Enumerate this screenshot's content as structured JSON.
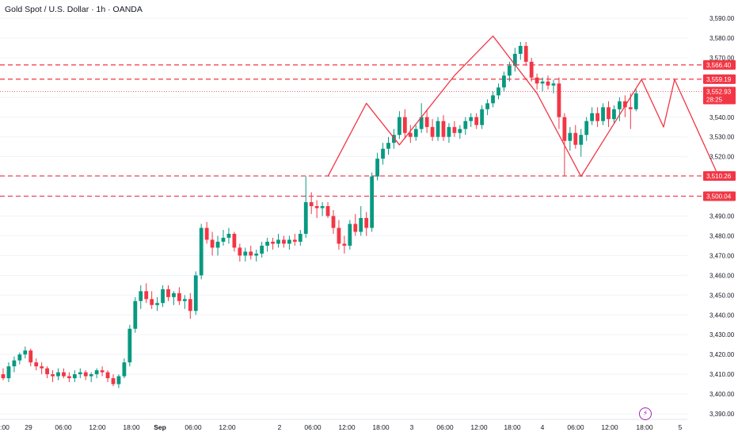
{
  "header": {
    "title": "Gold Spot / U.S. Dollar · 1h · OANDA"
  },
  "price_axis": {
    "ticks": [
      "3,590.00",
      "3,580.00",
      "3,570.00",
      "3,560.00",
      "3,550.00",
      "3,540.00",
      "3,530.00",
      "3,520.00",
      "3,510.00",
      "3,500.00",
      "3,490.00",
      "3,480.00",
      "3,470.00",
      "3,460.00",
      "3,450.00",
      "3,440.00",
      "3,430.00",
      "3,420.00",
      "3,410.00",
      "3,400.00",
      "3,390.00"
    ],
    "tick_values": [
      3590,
      3580,
      3570,
      3560,
      3550,
      3540,
      3530,
      3520,
      3510,
      3500,
      3490,
      3480,
      3470,
      3460,
      3450,
      3440,
      3430,
      3420,
      3410,
      3400,
      3390
    ]
  },
  "time_axis": {
    "labels": [
      ":00",
      "29",
      "06:00",
      "12:00",
      "18:00",
      "Sep",
      "06:00",
      "12:00",
      "2",
      "06:00",
      "12:00",
      "18:00",
      "3",
      "06:00",
      "12:00",
      "18:00",
      "4",
      "06:00",
      "12:00",
      "18:00",
      "5"
    ],
    "bold": [
      false,
      false,
      false,
      false,
      false,
      true,
      false,
      false,
      false,
      false,
      false,
      false,
      false,
      false,
      false,
      false,
      false,
      false,
      false,
      false,
      false
    ]
  },
  "horizontal_levels": [
    {
      "price": 3566.4,
      "label": "3,566.40"
    },
    {
      "price": 3559.19,
      "label": "3,559.19"
    },
    {
      "price": 3510.26,
      "label": "3,510.26"
    },
    {
      "price": 3500.04,
      "label": "3,500.04"
    }
  ],
  "current_price": {
    "price": 3552.93,
    "label": "3,552.93",
    "countdown": "28:25"
  },
  "colors": {
    "up": "#089981",
    "down": "#f23645",
    "line": "#f23645",
    "text": "#131722",
    "bolt": "#9c27b0"
  },
  "events": {
    "icon": "lightning-icon"
  },
  "chart_data": {
    "type": "candlestick",
    "title": "Gold Spot / U.S. Dollar · 1h · OANDA",
    "ylim": [
      3387,
      3595
    ],
    "candles": [
      [
        3410,
        3413,
        3407,
        3408
      ],
      [
        3408,
        3416,
        3406,
        3414
      ],
      [
        3414,
        3419,
        3411,
        3417
      ],
      [
        3417,
        3421,
        3415,
        3420
      ],
      [
        3420,
        3424,
        3418,
        3422
      ],
      [
        3422,
        3423,
        3414,
        3416
      ],
      [
        3416,
        3418,
        3412,
        3414
      ],
      [
        3414,
        3416,
        3410,
        3413
      ],
      [
        3413,
        3414,
        3408,
        3410
      ],
      [
        3410,
        3412,
        3406,
        3409
      ],
      [
        3409,
        3413,
        3407,
        3411
      ],
      [
        3411,
        3413,
        3408,
        3409
      ],
      [
        3409,
        3411,
        3406,
        3408
      ],
      [
        3408,
        3412,
        3406,
        3410
      ],
      [
        3410,
        3413,
        3408,
        3411
      ],
      [
        3411,
        3412,
        3407,
        3409
      ],
      [
        3409,
        3411,
        3406,
        3410
      ],
      [
        3410,
        3413,
        3408,
        3412
      ],
      [
        3412,
        3414,
        3409,
        3411
      ],
      [
        3411,
        3412,
        3406,
        3408
      ],
      [
        3408,
        3410,
        3404,
        3405
      ],
      [
        3405,
        3410,
        3403,
        3409
      ],
      [
        3409,
        3418,
        3408,
        3416
      ],
      [
        3416,
        3435,
        3414,
        3433
      ],
      [
        3433,
        3449,
        3431,
        3447
      ],
      [
        3447,
        3455,
        3443,
        3452
      ],
      [
        3452,
        3456,
        3446,
        3448
      ],
      [
        3448,
        3452,
        3443,
        3445
      ],
      [
        3445,
        3449,
        3442,
        3446
      ],
      [
        3446,
        3455,
        3444,
        3453
      ],
      [
        3453,
        3455,
        3447,
        3449
      ],
      [
        3449,
        3452,
        3445,
        3451
      ],
      [
        3451,
        3454,
        3445,
        3447
      ],
      [
        3447,
        3450,
        3443,
        3448
      ],
      [
        3448,
        3451,
        3438,
        3442
      ],
      [
        3442,
        3462,
        3440,
        3460
      ],
      [
        3460,
        3486,
        3458,
        3484
      ],
      [
        3484,
        3487,
        3476,
        3478
      ],
      [
        3478,
        3482,
        3470,
        3474
      ],
      [
        3474,
        3480,
        3470,
        3477
      ],
      [
        3477,
        3483,
        3475,
        3479
      ],
      [
        3479,
        3484,
        3476,
        3481
      ],
      [
        3481,
        3482,
        3472,
        3474
      ],
      [
        3474,
        3476,
        3467,
        3470
      ],
      [
        3470,
        3474,
        3467,
        3472
      ],
      [
        3472,
        3475,
        3468,
        3470
      ],
      [
        3470,
        3473,
        3467,
        3471
      ],
      [
        3471,
        3477,
        3469,
        3475
      ],
      [
        3475,
        3479,
        3472,
        3477
      ],
      [
        3477,
        3479,
        3473,
        3476
      ],
      [
        3476,
        3481,
        3474,
        3478
      ],
      [
        3478,
        3480,
        3474,
        3476
      ],
      [
        3476,
        3480,
        3473,
        3478
      ],
      [
        3478,
        3481,
        3475,
        3477
      ],
      [
        3477,
        3483,
        3475,
        3481
      ],
      [
        3481,
        3510,
        3479,
        3497
      ],
      [
        3497,
        3502,
        3491,
        3495
      ],
      [
        3495,
        3498,
        3489,
        3494
      ],
      [
        3494,
        3497,
        3490,
        3495
      ],
      [
        3495,
        3497,
        3489,
        3490
      ],
      [
        3490,
        3493,
        3481,
        3484
      ],
      [
        3484,
        3488,
        3473,
        3476
      ],
      [
        3476,
        3480,
        3471,
        3475
      ],
      [
        3475,
        3488,
        3473,
        3486
      ],
      [
        3486,
        3491,
        3480,
        3482
      ],
      [
        3482,
        3495,
        3480,
        3489
      ],
      [
        3489,
        3492,
        3480,
        3484
      ],
      [
        3484,
        3512,
        3482,
        3510
      ],
      [
        3510,
        3522,
        3508,
        3519
      ],
      [
        3519,
        3527,
        3516,
        3524
      ],
      [
        3524,
        3530,
        3521,
        3527
      ],
      [
        3527,
        3534,
        3524,
        3531
      ],
      [
        3531,
        3543,
        3529,
        3540
      ],
      [
        3540,
        3544,
        3529,
        3532
      ],
      [
        3532,
        3536,
        3527,
        3530
      ],
      [
        3530,
        3536,
        3528,
        3534
      ],
      [
        3534,
        3547,
        3532,
        3540
      ],
      [
        3540,
        3544,
        3532,
        3535
      ],
      [
        3535,
        3539,
        3528,
        3530
      ],
      [
        3530,
        3540,
        3528,
        3538
      ],
      [
        3538,
        3541,
        3528,
        3530
      ],
      [
        3530,
        3537,
        3527,
        3535
      ],
      [
        3535,
        3538,
        3530,
        3532
      ],
      [
        3532,
        3536,
        3529,
        3534
      ],
      [
        3534,
        3540,
        3531,
        3538
      ],
      [
        3538,
        3542,
        3535,
        3540
      ],
      [
        3540,
        3542,
        3534,
        3536
      ],
      [
        3536,
        3546,
        3534,
        3544
      ],
      [
        3544,
        3549,
        3541,
        3547
      ],
      [
        3547,
        3553,
        3545,
        3551
      ],
      [
        3551,
        3557,
        3549,
        3555
      ],
      [
        3555,
        3563,
        3553,
        3561
      ],
      [
        3561,
        3568,
        3558,
        3566
      ],
      [
        3566,
        3575,
        3563,
        3572
      ],
      [
        3572,
        3578,
        3569,
        3576
      ],
      [
        3576,
        3578,
        3566,
        3568
      ],
      [
        3568,
        3570,
        3558,
        3560
      ],
      [
        3560,
        3562,
        3554,
        3557
      ],
      [
        3557,
        3560,
        3553,
        3558
      ],
      [
        3558,
        3561,
        3554,
        3556
      ],
      [
        3556,
        3559,
        3552,
        3557
      ],
      [
        3557,
        3560,
        3534,
        3540
      ],
      [
        3540,
        3542,
        3510,
        3528
      ],
      [
        3528,
        3535,
        3523,
        3532
      ],
      [
        3532,
        3536,
        3524,
        3526
      ],
      [
        3526,
        3534,
        3520,
        3531
      ],
      [
        3531,
        3540,
        3528,
        3538
      ],
      [
        3538,
        3545,
        3536,
        3542
      ],
      [
        3542,
        3545,
        3535,
        3538
      ],
      [
        3538,
        3547,
        3536,
        3545
      ],
      [
        3545,
        3548,
        3535,
        3539
      ],
      [
        3539,
        3546,
        3537,
        3544
      ],
      [
        3544,
        3550,
        3538,
        3548
      ],
      [
        3548,
        3551,
        3540,
        3545
      ],
      [
        3545,
        3552,
        3534,
        3544
      ],
      [
        3544,
        3554,
        3543,
        3552
      ]
    ],
    "zigzag_paths": [
      [
        [
          59,
          3510
        ],
        [
          66,
          3547
        ],
        [
          72,
          3526
        ],
        [
          82,
          3561
        ],
        [
          89,
          3581
        ],
        [
          97,
          3552
        ],
        [
          105,
          3510
        ],
        [
          116,
          3559
        ],
        [
          120,
          3535
        ],
        [
          122,
          3559
        ],
        [
          130,
          3510
        ]
      ]
    ]
  }
}
